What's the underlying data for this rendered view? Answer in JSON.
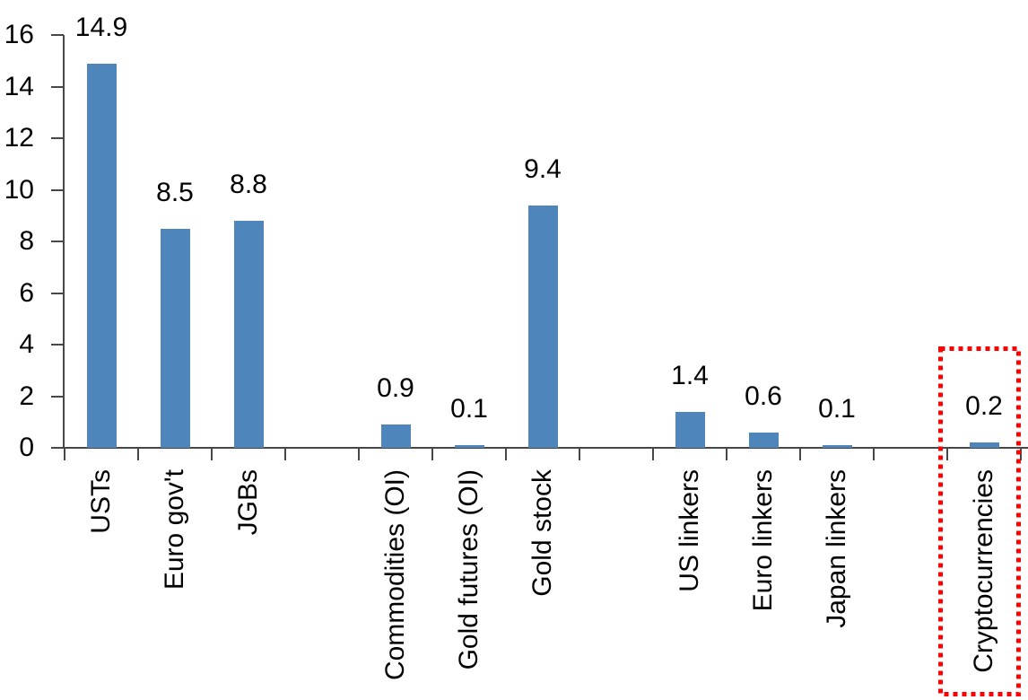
{
  "chart_data": {
    "type": "bar",
    "title": "",
    "categories": [
      "USTs",
      "Euro gov't",
      "JGBs",
      "",
      "Commodities (OI)",
      "Gold futures (OI)",
      "Gold stock",
      "",
      "US linkers",
      "Euro linkers",
      "Japan linkers",
      "",
      "Cryptocurrencies"
    ],
    "values": [
      14.9,
      8.5,
      8.8,
      null,
      0.9,
      0.1,
      9.4,
      null,
      1.4,
      0.6,
      0.1,
      null,
      0.2
    ],
    "data_labels": [
      "14.9",
      "8.5",
      "8.8",
      "",
      "0.9",
      "0.1",
      "9.4",
      "",
      "1.4",
      "0.6",
      "0.1",
      "",
      "0.2"
    ],
    "xlabel": "",
    "ylabel": "",
    "ylim": [
      0,
      16
    ],
    "yticks": [
      0,
      2,
      4,
      6,
      8,
      10,
      12,
      14,
      16
    ],
    "grid": false,
    "legend": false,
    "bar_color": "#4e86bc",
    "axis_color": "#474747",
    "text_color": "#000000",
    "highlight": {
      "category": "Cryptocurrencies",
      "box_color": "#ff0000",
      "box_style": "dotted"
    }
  }
}
